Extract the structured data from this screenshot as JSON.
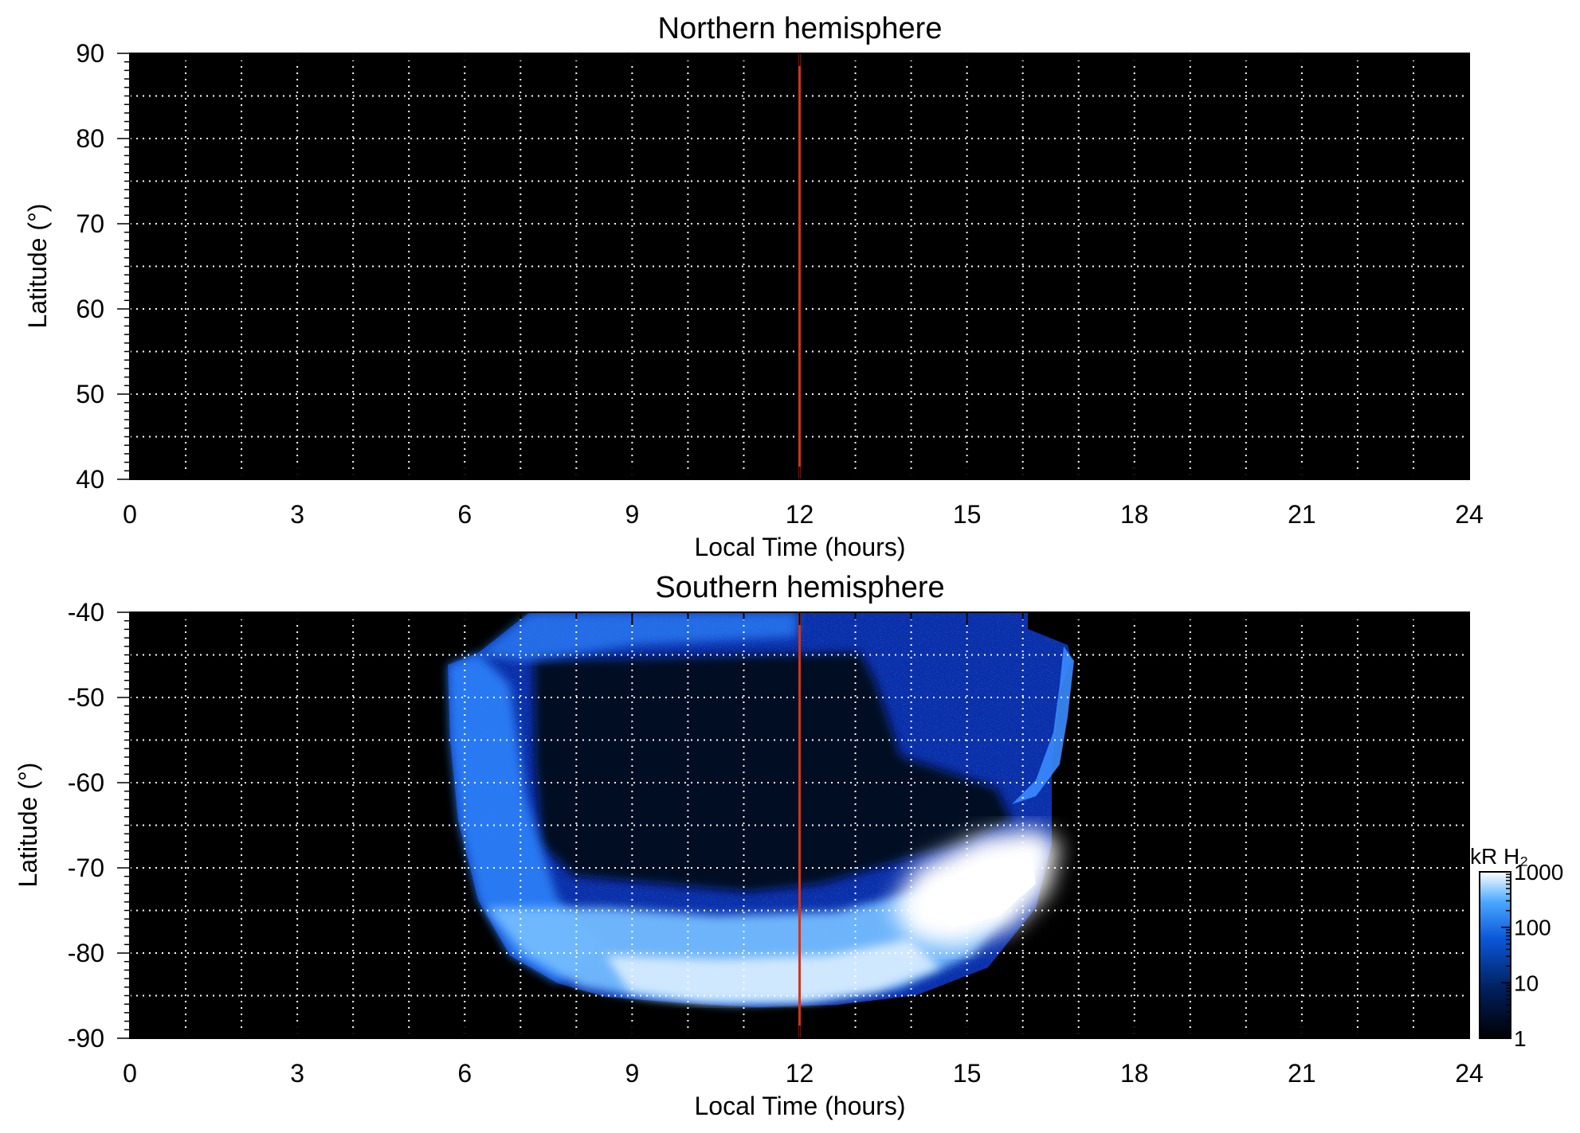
{
  "chart_data": [
    {
      "type": "heatmap",
      "title": "Northern hemisphere",
      "xlabel": "Local Time (hours)",
      "ylabel": "Latitude (°)",
      "xlim": [
        0,
        24
      ],
      "ylim": [
        40,
        90
      ],
      "xticks": [
        "0",
        "3",
        "6",
        "9",
        "12",
        "15",
        "18",
        "21",
        "24"
      ],
      "yticks": [
        "90",
        "80",
        "70",
        "60",
        "50",
        "40"
      ],
      "grid": "dotted white, every 1 hour and every 5 degrees",
      "background": "#000000",
      "reference_line": {
        "x": 12,
        "color": "#d0361a"
      },
      "emission": "none"
    },
    {
      "type": "heatmap",
      "title": "Southern hemisphere",
      "xlabel": "Local Time (hours)",
      "ylabel": "Latitude (°)",
      "xlim": [
        0,
        24
      ],
      "ylim": [
        -90,
        -40
      ],
      "xticks": [
        "0",
        "3",
        "6",
        "9",
        "12",
        "15",
        "18",
        "21",
        "24"
      ],
      "yticks": [
        "-40",
        "-50",
        "-60",
        "-70",
        "-80",
        "-90"
      ],
      "grid": "dotted white, every 1 hour and every 5 degrees",
      "background": "#000000",
      "reference_line": {
        "x": 12,
        "color": "#d0361a"
      },
      "emission_region": {
        "local_time_range": [
          5.7,
          17.1
        ],
        "latitude_range": [
          -87,
          -40
        ],
        "bright_oval": {
          "local_time_range": [
            13.5,
            17
          ],
          "latitude_range": [
            -80,
            -68
          ],
          "level": "≥1000 kR"
        },
        "dayside_band": {
          "local_time_range": [
            6,
            14
          ],
          "latitude_range": [
            -86,
            -75
          ],
          "level": "100–1000 kR"
        },
        "interior": {
          "level": "1–10 kR"
        }
      },
      "colorbar": {
        "label": "kR H₂",
        "scale": "log",
        "range": [
          1,
          1000
        ],
        "ticks": [
          "1000",
          "100",
          "10",
          "1"
        ],
        "colors": [
          "#000000",
          "#00205e",
          "#0b57d9",
          "#4aa8ff",
          "#ffffff"
        ]
      }
    }
  ]
}
